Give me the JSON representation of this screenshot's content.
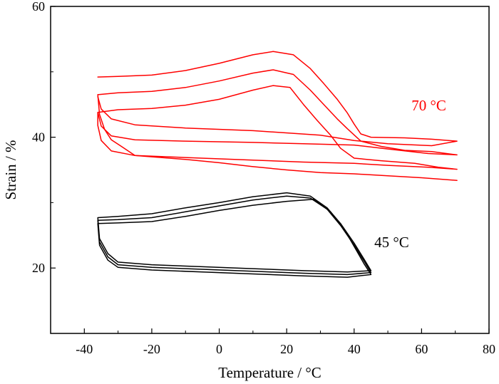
{
  "chart_data": {
    "type": "line",
    "title": "",
    "xlabel": "Temperature / °C",
    "ylabel": "Strain / %",
    "xlim": [
      -50,
      80
    ],
    "ylim": [
      10,
      60
    ],
    "xticks": [
      -40,
      -20,
      0,
      20,
      40,
      60,
      80
    ],
    "yticks": [
      20,
      40,
      60
    ],
    "grid": false,
    "legend": "none",
    "annotations": [
      {
        "text": "70 °C",
        "x": 57,
        "y": 44.1,
        "color": "#ff0000"
      },
      {
        "text": "45 °C",
        "x": 46,
        "y": 23.2,
        "color": "#000000"
      }
    ],
    "series": [
      {
        "color": "#ff0000",
        "points": [
          [
            -36,
            49.2
          ],
          [
            -30,
            49.3
          ],
          [
            -20,
            49.5
          ],
          [
            -10,
            50.2
          ],
          [
            0,
            51.3
          ],
          [
            10,
            52.6
          ],
          [
            16,
            53.1
          ],
          [
            22,
            52.6
          ],
          [
            27,
            50.5
          ],
          [
            31,
            48.2
          ],
          [
            35,
            45.8
          ],
          [
            38,
            43.7
          ],
          [
            40,
            42.0
          ],
          [
            42,
            40.5
          ],
          [
            45,
            40.0
          ],
          [
            55,
            39.9
          ],
          [
            63,
            39.7
          ],
          [
            70.5,
            39.4
          ],
          [
            63,
            38.7
          ],
          [
            50,
            39.0
          ],
          [
            40,
            39.5
          ],
          [
            30,
            40.3
          ],
          [
            10,
            41.0
          ],
          [
            -10,
            41.4
          ],
          [
            -25,
            41.9
          ],
          [
            -32,
            42.8
          ],
          [
            -35,
            44.3
          ],
          [
            -36,
            46.2
          ]
        ]
      },
      {
        "color": "#ff0000",
        "points": [
          [
            -36,
            46.5
          ],
          [
            -30,
            46.8
          ],
          [
            -20,
            47.0
          ],
          [
            -10,
            47.6
          ],
          [
            0,
            48.6
          ],
          [
            10,
            49.8
          ],
          [
            16,
            50.3
          ],
          [
            22,
            49.6
          ],
          [
            27,
            47.2
          ],
          [
            31,
            45.0
          ],
          [
            35,
            42.8
          ],
          [
            38,
            41.3
          ],
          [
            42,
            39.4
          ],
          [
            48,
            38.6
          ],
          [
            55,
            38.0
          ],
          [
            63,
            37.8
          ],
          [
            70.5,
            37.3
          ],
          [
            62,
            37.5
          ],
          [
            50,
            38.2
          ],
          [
            40,
            38.8
          ],
          [
            25,
            39.0
          ],
          [
            10,
            39.2
          ],
          [
            -10,
            39.4
          ],
          [
            -25,
            39.6
          ],
          [
            -32,
            40.2
          ],
          [
            -35,
            41.7
          ],
          [
            -36,
            43.8
          ]
        ]
      },
      {
        "color": "#ff0000",
        "points": [
          [
            -36,
            43.8
          ],
          [
            -30,
            44.2
          ],
          [
            -20,
            44.4
          ],
          [
            -10,
            44.9
          ],
          [
            0,
            45.8
          ],
          [
            10,
            47.2
          ],
          [
            16,
            47.9
          ],
          [
            21,
            47.6
          ],
          [
            25,
            45.0
          ],
          [
            29,
            42.6
          ],
          [
            33,
            40.3
          ],
          [
            36,
            38.3
          ],
          [
            40,
            36.8
          ],
          [
            48,
            36.4
          ],
          [
            58,
            36.0
          ],
          [
            65,
            35.4
          ],
          [
            70.5,
            35.1
          ],
          [
            62,
            35.4
          ],
          [
            50,
            35.7
          ],
          [
            40,
            36.0
          ],
          [
            25,
            36.2
          ],
          [
            10,
            36.5
          ],
          [
            -10,
            36.9
          ],
          [
            -25,
            37.2
          ],
          [
            -32,
            37.9
          ],
          [
            -35,
            39.5
          ],
          [
            -36,
            41.8
          ],
          [
            -36,
            43.8
          ]
        ]
      },
      {
        "color": "#ff0000",
        "points": [
          [
            -36,
            46.5
          ],
          [
            -35.5,
            43.5
          ],
          [
            -34,
            41.2
          ],
          [
            -32,
            39.6
          ],
          [
            -29,
            38.6
          ],
          [
            -25,
            37.2
          ],
          [
            -20,
            37.0
          ],
          [
            -10,
            36.6
          ],
          [
            0,
            36.1
          ],
          [
            10,
            35.5
          ],
          [
            20,
            35.0
          ],
          [
            30,
            34.6
          ],
          [
            40,
            34.4
          ],
          [
            50,
            34.1
          ],
          [
            60,
            33.8
          ],
          [
            70.5,
            33.4
          ]
        ]
      },
      {
        "color": "#000000",
        "points": [
          [
            -36,
            27.7
          ],
          [
            -30,
            27.9
          ],
          [
            -20,
            28.3
          ],
          [
            -10,
            29.2
          ],
          [
            0,
            30.0
          ],
          [
            10,
            30.9
          ],
          [
            20,
            31.5
          ],
          [
            27,
            31.0
          ],
          [
            32,
            29.2
          ],
          [
            36,
            26.8
          ],
          [
            40,
            23.8
          ],
          [
            43,
            21.3
          ],
          [
            45,
            19.6
          ],
          [
            38,
            19.4
          ],
          [
            25,
            19.6
          ],
          [
            10,
            19.9
          ],
          [
            -5,
            20.2
          ],
          [
            -20,
            20.5
          ],
          [
            -30,
            20.9
          ],
          [
            -33,
            22.2
          ],
          [
            -35.5,
            24.5
          ],
          [
            -36,
            27.7
          ]
        ]
      },
      {
        "color": "#000000",
        "points": [
          [
            -36,
            27.3
          ],
          [
            -30,
            27.4
          ],
          [
            -20,
            27.7
          ],
          [
            -10,
            28.6
          ],
          [
            0,
            29.5
          ],
          [
            10,
            30.4
          ],
          [
            20,
            31.0
          ],
          [
            27,
            30.7
          ],
          [
            32,
            29.0
          ],
          [
            36,
            26.5
          ],
          [
            40,
            23.5
          ],
          [
            43,
            21.0
          ],
          [
            45,
            19.3
          ],
          [
            38,
            19.0
          ],
          [
            25,
            19.2
          ],
          [
            10,
            19.5
          ],
          [
            -5,
            19.8
          ],
          [
            -20,
            20.1
          ],
          [
            -30,
            20.5
          ],
          [
            -33,
            21.7
          ],
          [
            -35.5,
            24.0
          ],
          [
            -36,
            27.3
          ]
        ]
      },
      {
        "color": "#000000",
        "points": [
          [
            -36,
            26.8
          ],
          [
            -30,
            26.9
          ],
          [
            -20,
            27.1
          ],
          [
            -10,
            27.9
          ],
          [
            0,
            28.8
          ],
          [
            10,
            29.6
          ],
          [
            20,
            30.2
          ],
          [
            28,
            30.5
          ],
          [
            33,
            28.6
          ],
          [
            37,
            26.0
          ],
          [
            40,
            23.3
          ],
          [
            43,
            20.6
          ],
          [
            45,
            19.0
          ],
          [
            38,
            18.6
          ],
          [
            25,
            18.8
          ],
          [
            10,
            19.1
          ],
          [
            -5,
            19.4
          ],
          [
            -20,
            19.7
          ],
          [
            -30,
            20.1
          ],
          [
            -33,
            21.2
          ],
          [
            -35.5,
            23.5
          ],
          [
            -36,
            26.8
          ]
        ]
      }
    ]
  }
}
